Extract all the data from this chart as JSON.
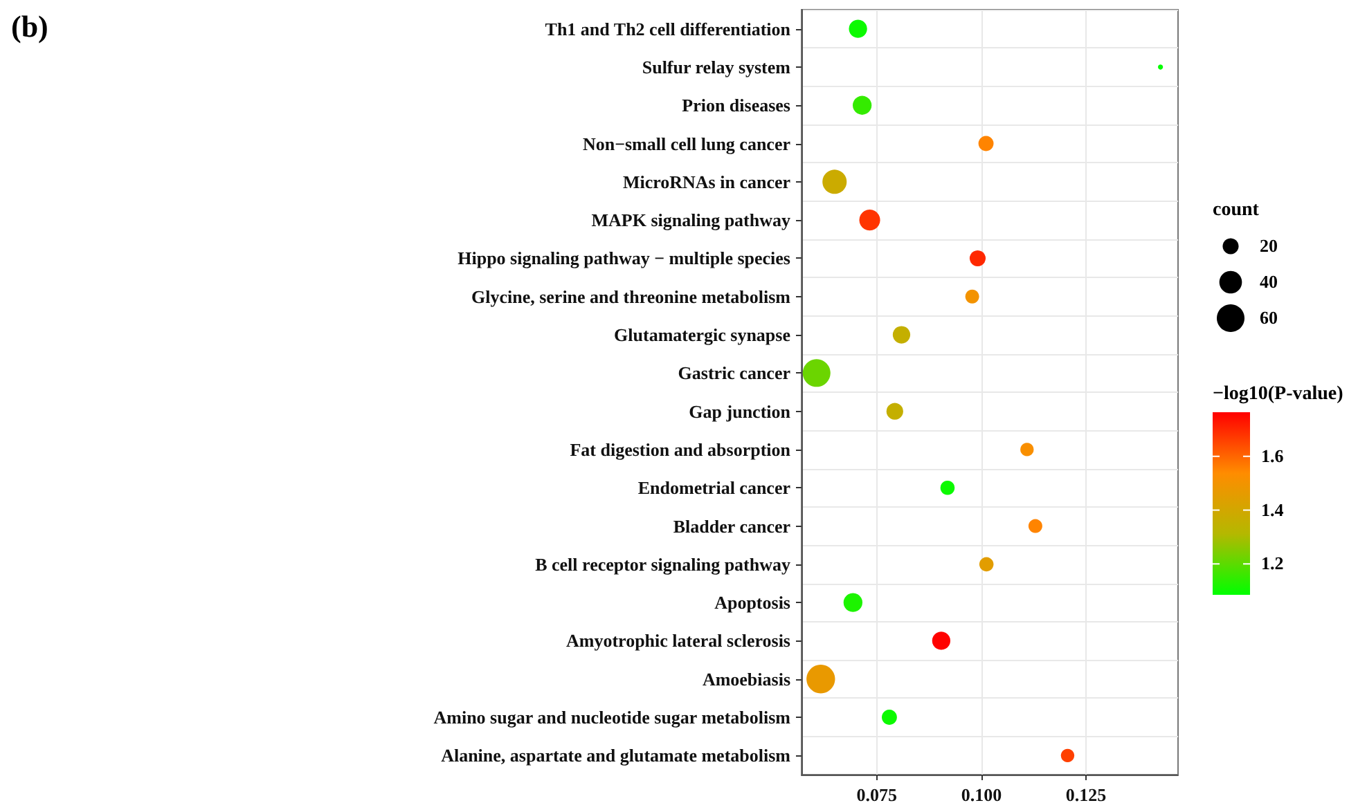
{
  "chart_data": {
    "type": "bubble",
    "title": "(b)",
    "legend_title": "count",
    "clabel": "−log10($_{}$P-value)",
    "categories": [
      "Th1 and Th2 cell differentiation",
      "Sulfur relay system",
      "Prion diseases",
      "Non−small cell lung cancer",
      "MicroRNAs in cancer",
      "MAPK signaling pathway",
      "Hippo signaling pathway − multiple species",
      "Glycine, serine and threonine metabolism",
      "Glutamatergic synapse",
      "Gastric cancer",
      "Gap junction",
      "Fat digestion and absorption",
      "Endometrial cancer",
      "Bladder cancer",
      "B cell receptor signaling pathway",
      "Apoptosis",
      "Amyotrophic lateral sclerosis",
      "Amoebiasis",
      "Amino sugar and nucleotide sugar metabolism",
      "Alanine, aspartate and glutamate metabolism"
    ],
    "orientation": "horizontal",
    "values": [
      0.0705,
      0.1428,
      0.0715,
      0.1011,
      0.0649,
      0.0733,
      0.0991,
      0.0978,
      0.0809,
      0.0606,
      0.0793,
      0.1109,
      0.0919,
      0.1129,
      0.1012,
      0.0693,
      0.0904,
      0.0616,
      0.078,
      0.1206
    ],
    "sizes": [
      26,
      2,
      28,
      18,
      46,
      34,
      20,
      15,
      24,
      60,
      22,
      14,
      16,
      15,
      16,
      28,
      26,
      64,
      18,
      14
    ],
    "size_legend": [
      20,
      40,
      60
    ],
    "cvalues": [
      1.1,
      1.09,
      1.15,
      1.55,
      1.38,
      1.68,
      1.7,
      1.5,
      1.36,
      1.22,
      1.36,
      1.52,
      1.1,
      1.55,
      1.45,
      1.12,
      1.76,
      1.47,
      1.1,
      1.66
    ],
    "clim": [
      1.085,
      1.764
    ],
    "cticks": [
      1.2,
      1.4,
      1.6
    ],
    "xlim": [
      0.057,
      0.147
    ],
    "xticks": [
      {
        "value": 0.075,
        "label": "0.075"
      },
      {
        "value": 0.1,
        "label": "0.100"
      },
      {
        "value": 0.125,
        "label": "0.125"
      }
    ],
    "grid": true
  }
}
